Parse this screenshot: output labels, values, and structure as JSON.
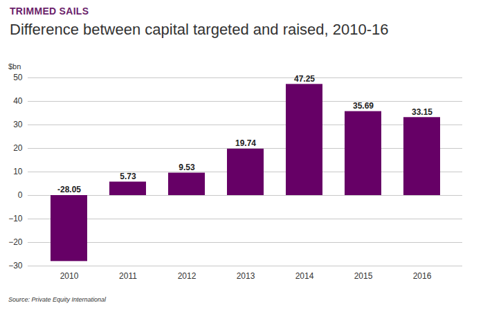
{
  "chart_data": {
    "type": "bar",
    "subtitle": "TRIMMED SAILS",
    "title": "Difference between capital targeted and raised, 2010-16",
    "ylabel": "$bn",
    "source": "Source: Private Equity International",
    "categories": [
      "2010",
      "2011",
      "2012",
      "2013",
      "2014",
      "2015",
      "2016"
    ],
    "values": [
      -28.05,
      5.73,
      9.53,
      19.74,
      47.25,
      35.69,
      33.15
    ],
    "color": "#660066",
    "ylim": [
      -30,
      50
    ],
    "yticks": [
      -30,
      -20,
      -10,
      0,
      10,
      20,
      30,
      40,
      50
    ],
    "grid": true,
    "data_labels": true
  }
}
